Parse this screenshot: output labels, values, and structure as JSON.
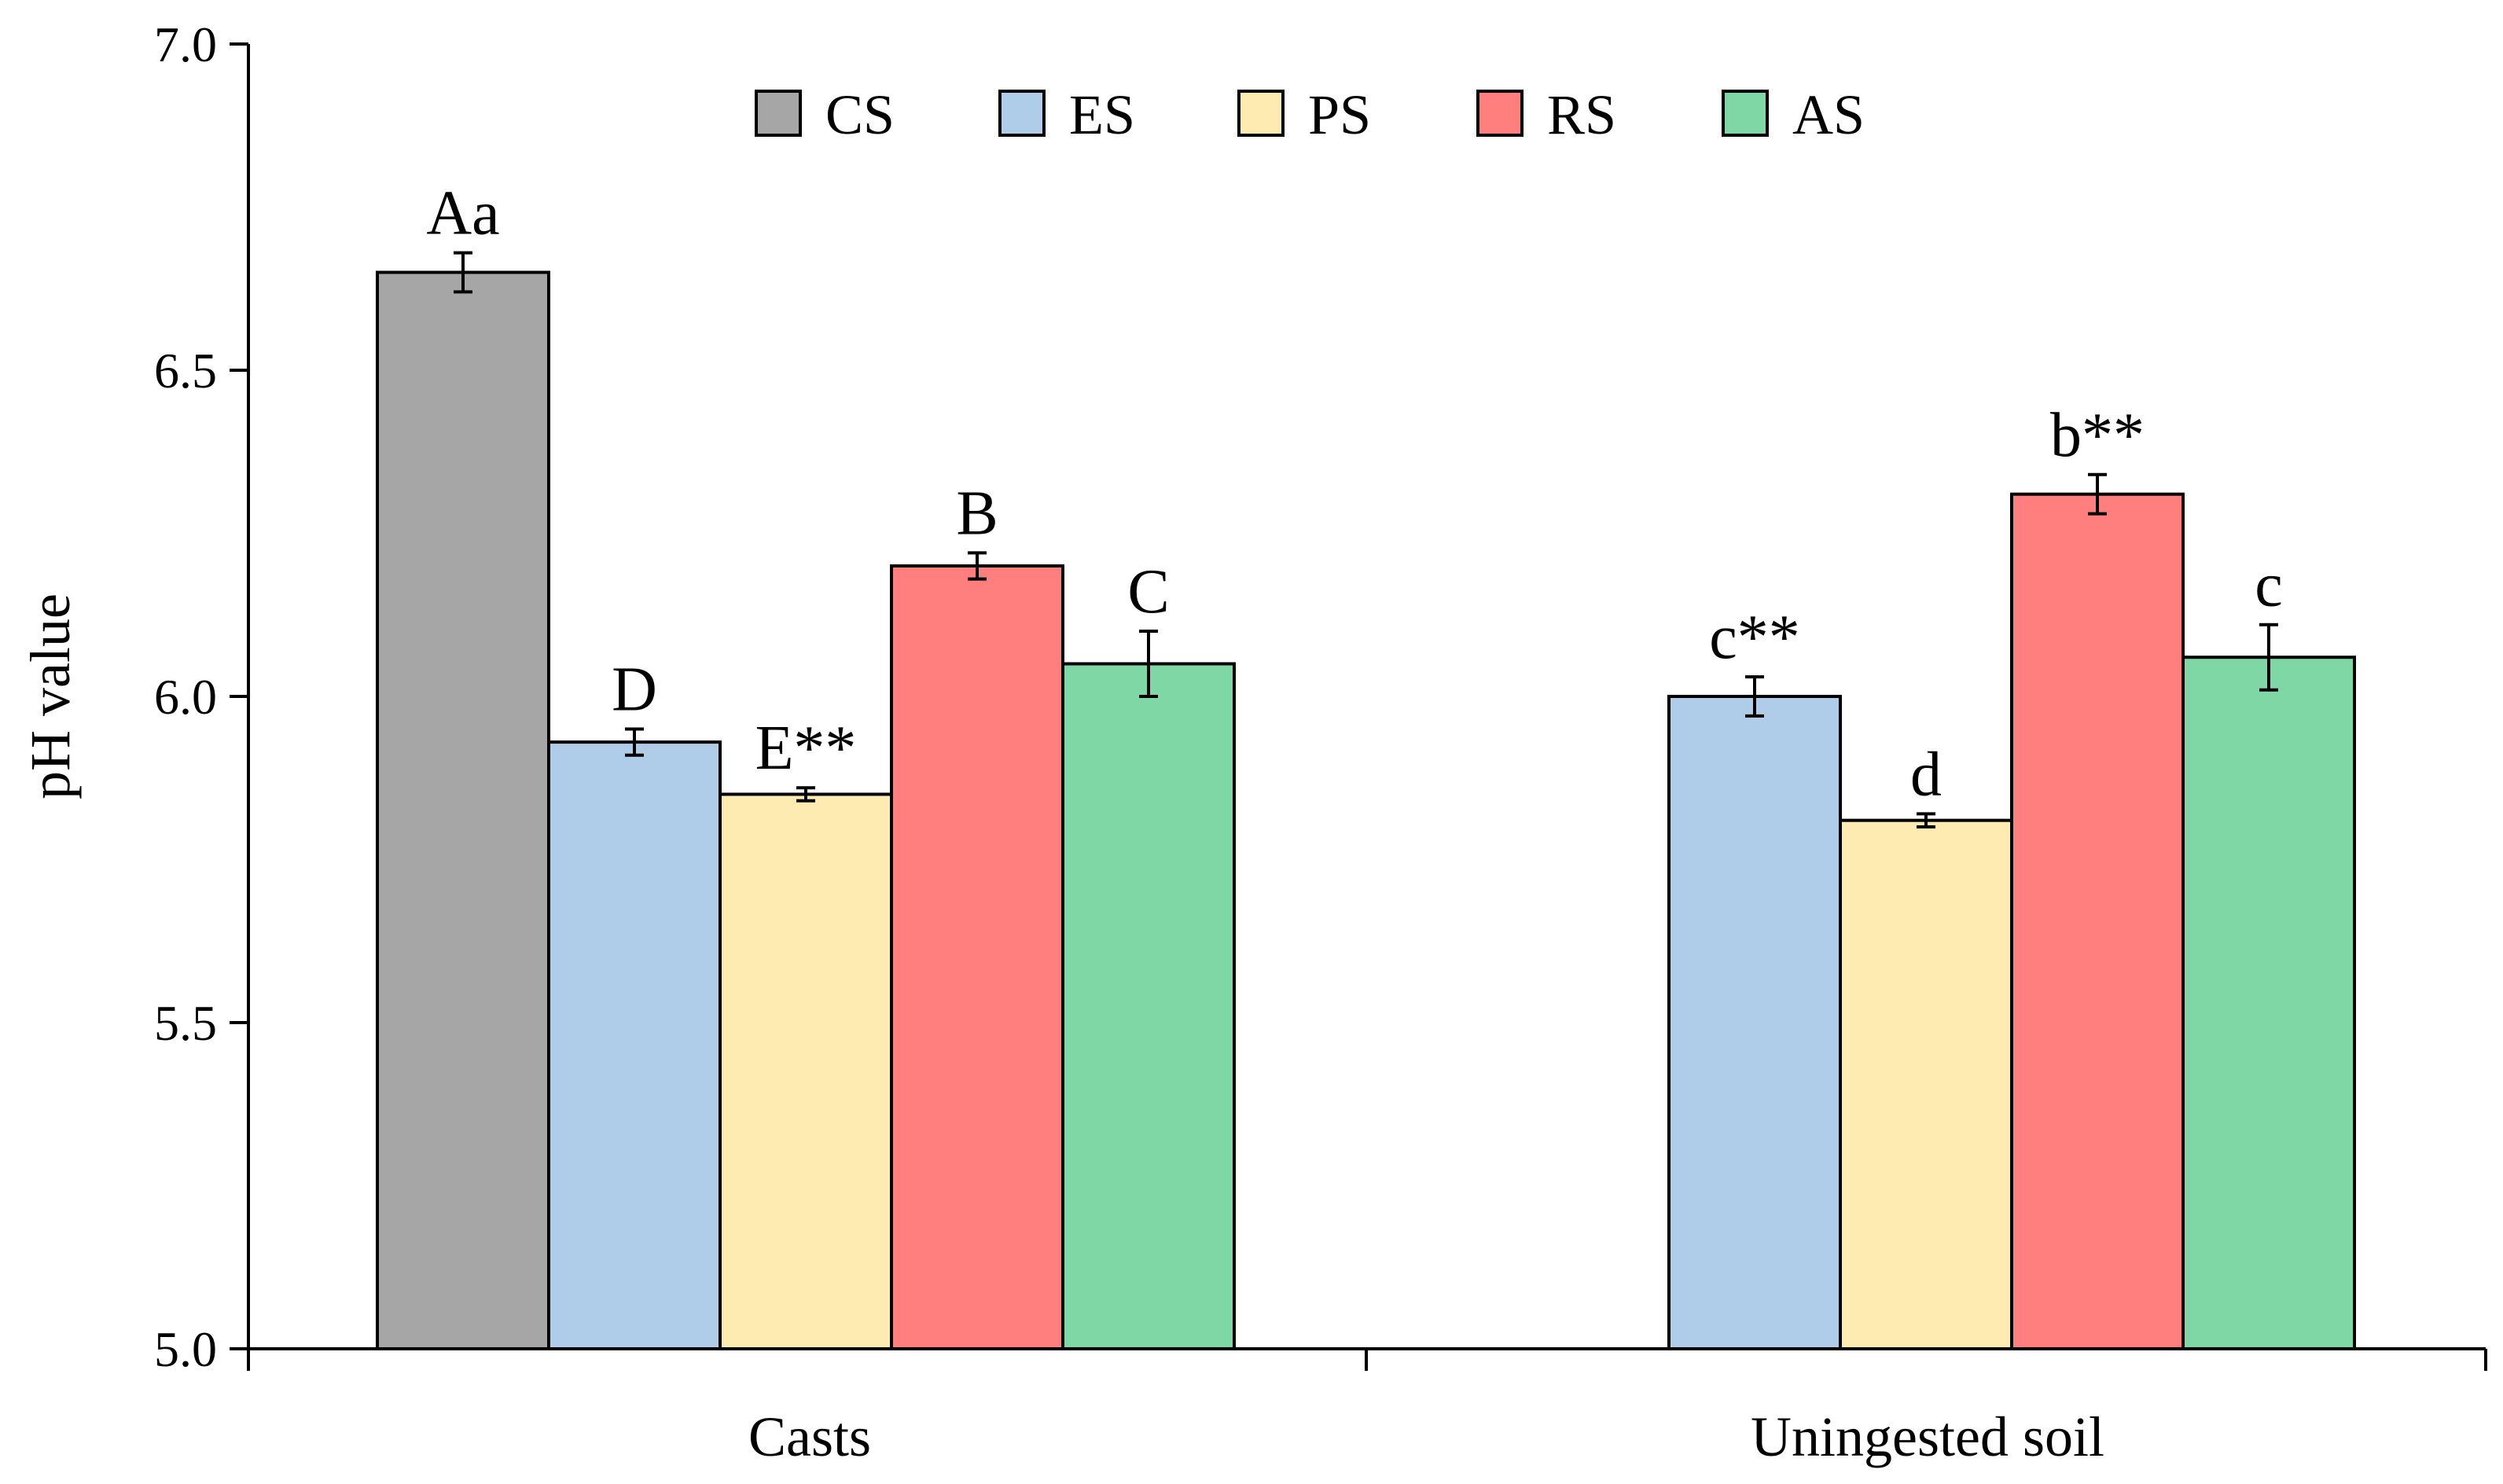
{
  "chart_data": {
    "type": "bar",
    "title": "",
    "xlabel": "",
    "ylabel": "pH value",
    "ylim": [
      5.0,
      7.0
    ],
    "yticks": [
      "5.0",
      "5.5",
      "6.0",
      "6.5",
      "7.0"
    ],
    "grid": false,
    "legend_position": "top-center",
    "groups": [
      {
        "name": "Casts",
        "bars": [
          {
            "series": "CS",
            "value": 6.65,
            "error": 0.03,
            "label": "Aa"
          },
          {
            "series": "ES",
            "value": 5.93,
            "error": 0.02,
            "label": "D"
          },
          {
            "series": "PS",
            "value": 5.85,
            "error": 0.01,
            "label": "E**"
          },
          {
            "series": "RS",
            "value": 6.2,
            "error": 0.02,
            "label": "B"
          },
          {
            "series": "AS",
            "value": 6.05,
            "error": 0.05,
            "label": "C"
          }
        ]
      },
      {
        "name": "Uningested soil",
        "bars": [
          {
            "series": "ES",
            "value": 6.0,
            "error": 0.03,
            "label": "c**"
          },
          {
            "series": "PS",
            "value": 5.81,
            "error": 0.01,
            "label": "d"
          },
          {
            "series": "RS",
            "value": 6.31,
            "error": 0.03,
            "label": "b**"
          },
          {
            "series": "AS",
            "value": 6.06,
            "error": 0.05,
            "label": "c"
          }
        ]
      }
    ],
    "series": [
      {
        "name": "CS",
        "color": "#a6a6a6"
      },
      {
        "name": "ES",
        "color": "#afcce9"
      },
      {
        "name": "PS",
        "color": "#feebb2"
      },
      {
        "name": "RS",
        "color": "#fe7f7e"
      },
      {
        "name": "AS",
        "color": "#7fd7a6"
      }
    ]
  }
}
